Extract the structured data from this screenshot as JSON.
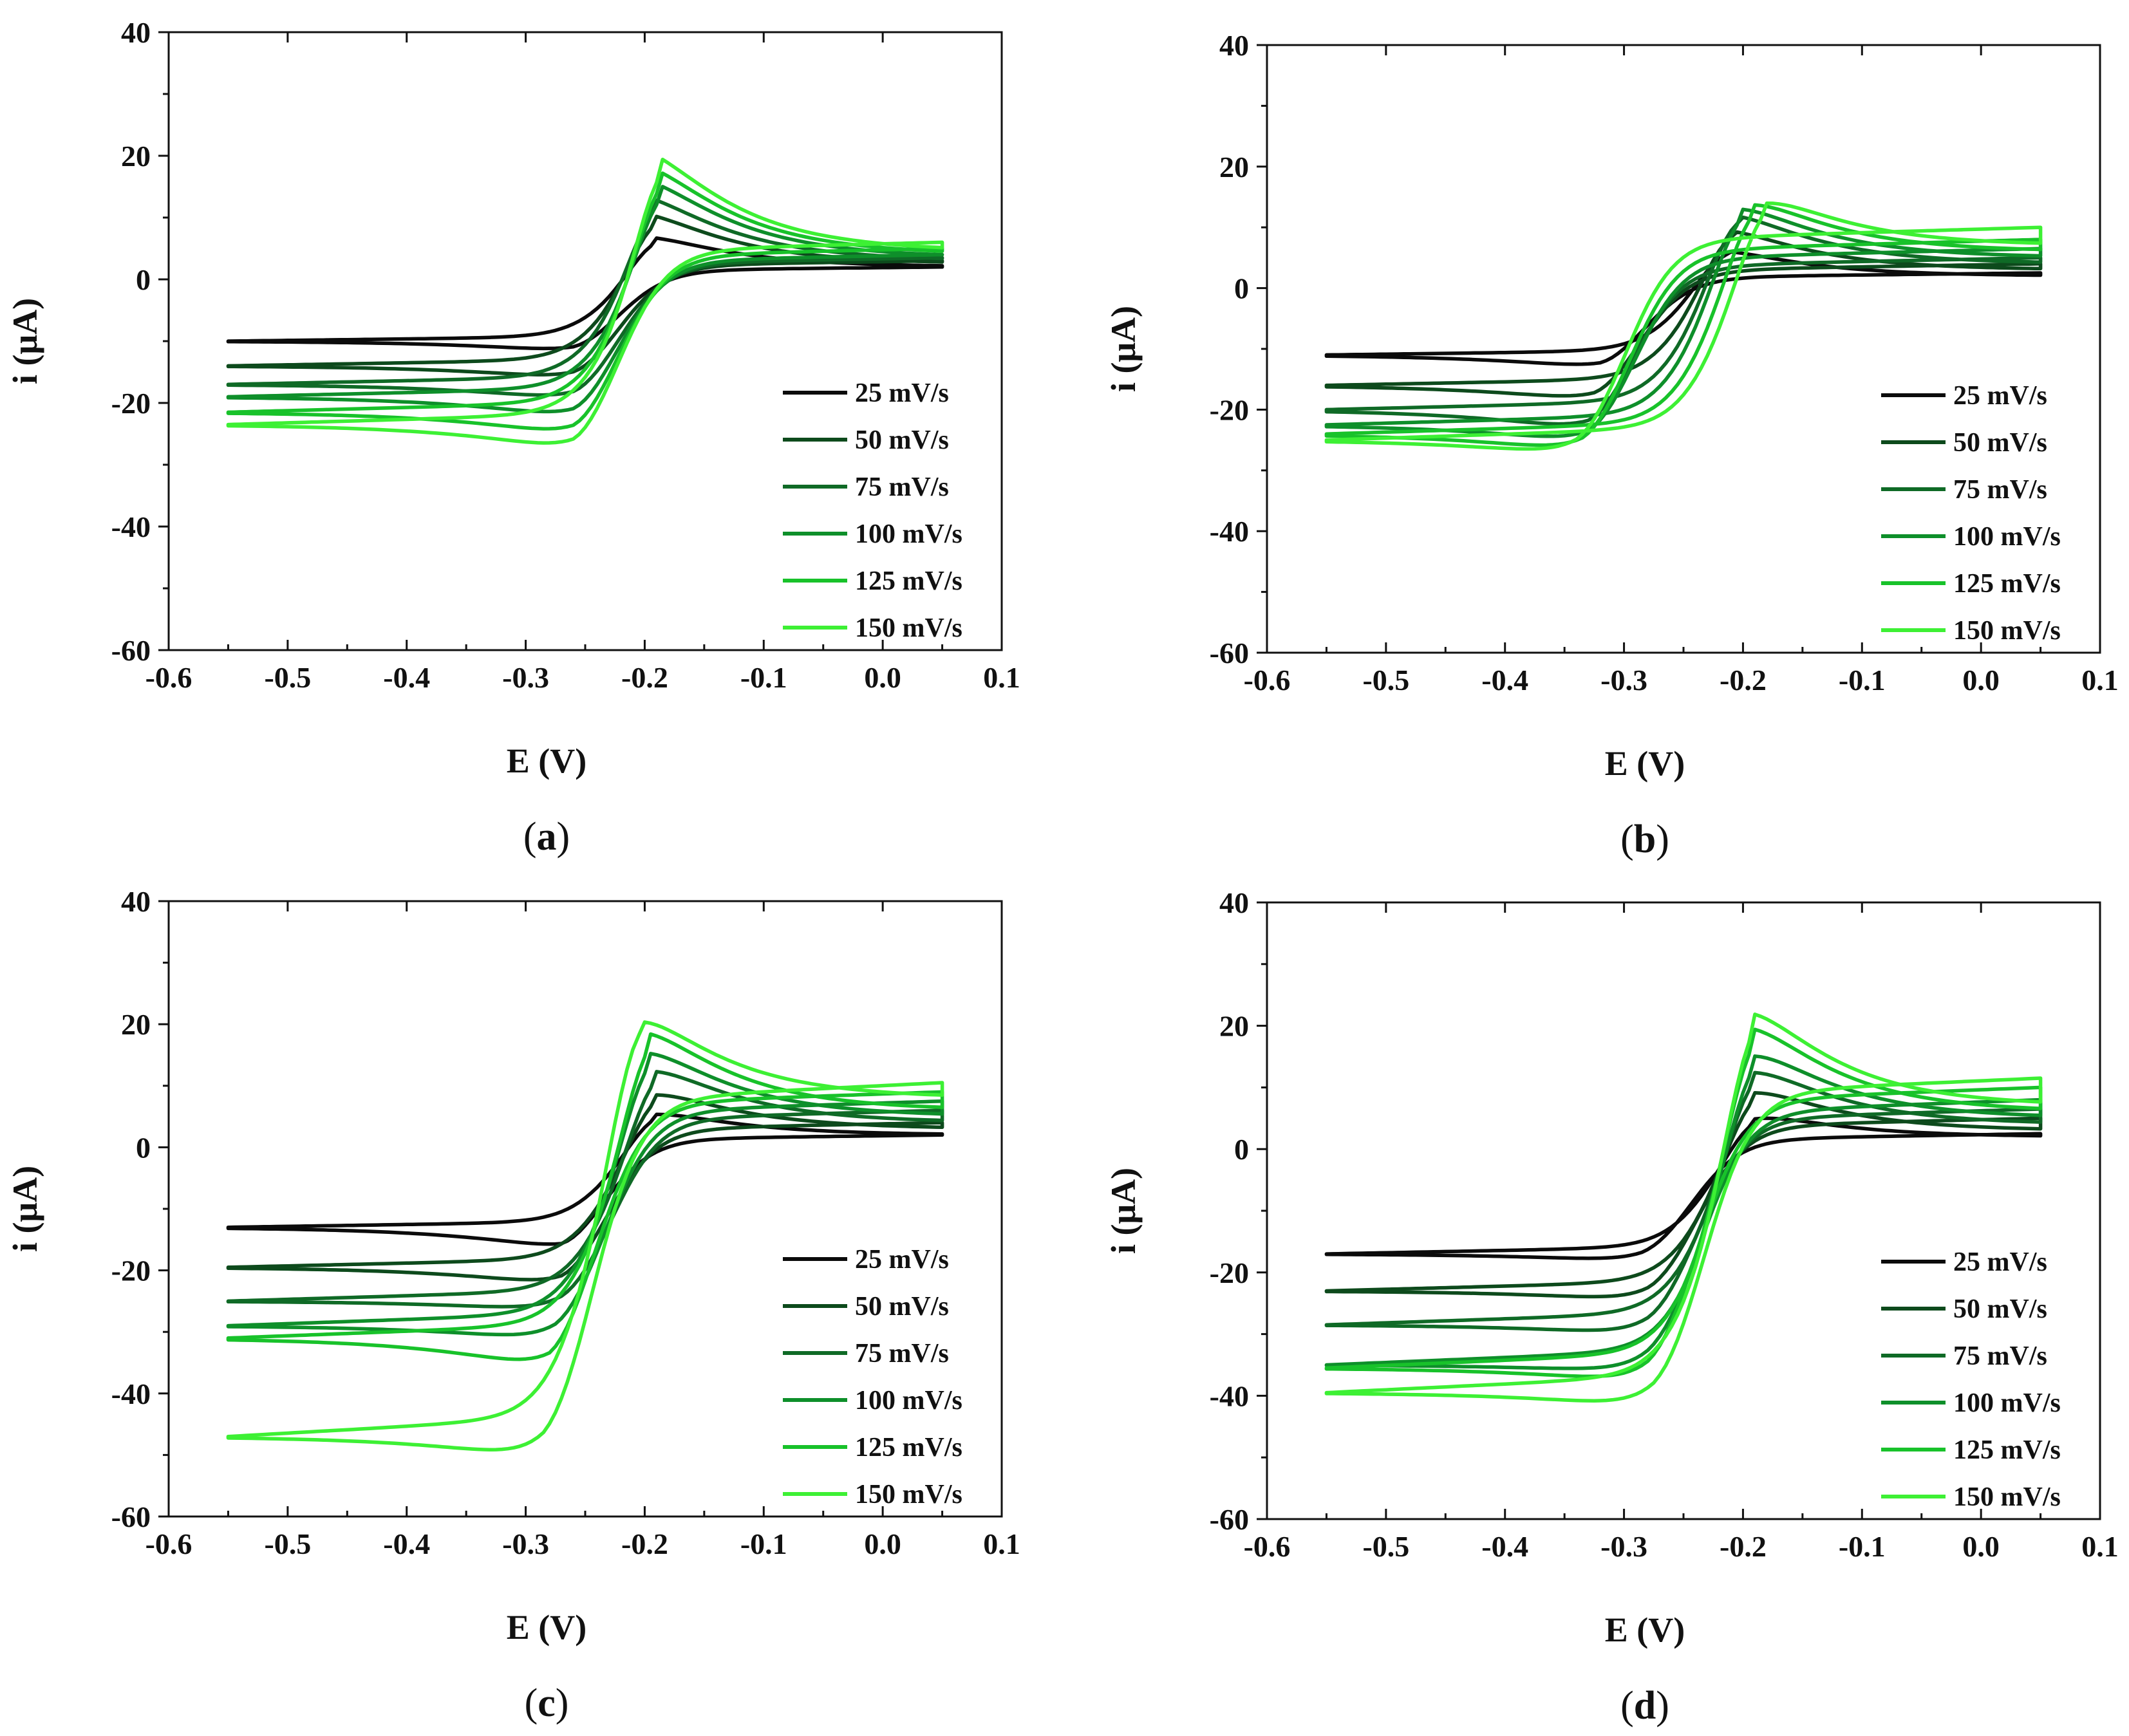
{
  "figure": {
    "colors": [
      "#0b0b0b",
      "#0d4a1c",
      "#0f6a26",
      "#0e8f2a",
      "#18c22a",
      "#3df034"
    ],
    "legend_labels": [
      "25 mV/s",
      "50 mV/s",
      "75 mV/s",
      "100 mV/s",
      "125 mV/s",
      "150 mV/s"
    ]
  },
  "chart_data": [
    {
      "type": "line",
      "panel": "(a)",
      "panel_letter": "a",
      "xlabel": "E (V)",
      "ylabel": "i (μA)",
      "xlim": [
        -0.6,
        0.1
      ],
      "ylim": [
        -60,
        40
      ],
      "xticks": [
        "-0.6",
        "-0.5",
        "-0.4",
        "-0.3",
        "-0.2",
        "-0.1",
        "0.0",
        "0.1"
      ],
      "yticks": [
        "-60",
        "-40",
        "-20",
        "0",
        "20",
        "40"
      ],
      "legend_position": "lower-right",
      "series": [
        {
          "name": "25 mV/s",
          "e_start": -0.55,
          "e_end": 0.05,
          "i_start_fwd": -10,
          "i_end_fwd": 2,
          "i_end_rev": 2,
          "i_start_rev": -10,
          "anodic_peak": {
            "x": -0.19,
            "y": 8
          },
          "cathodic_peak": {
            "x": -0.26,
            "y": -12
          }
        },
        {
          "name": "50 mV/s",
          "e_start": -0.55,
          "e_end": 0.05,
          "i_start_fwd": -14,
          "i_end_fwd": 2.5,
          "i_end_rev": 3,
          "i_start_rev": -14,
          "anodic_peak": {
            "x": -0.19,
            "y": 12
          },
          "cathodic_peak": {
            "x": -0.26,
            "y": -16.5
          }
        },
        {
          "name": "75 mV/s",
          "e_start": -0.55,
          "e_end": 0.05,
          "i_start_fwd": -17,
          "i_end_fwd": 3,
          "i_end_rev": 3.5,
          "i_start_rev": -17,
          "anodic_peak": {
            "x": -0.19,
            "y": 15
          },
          "cathodic_peak": {
            "x": -0.26,
            "y": -20
          }
        },
        {
          "name": "100 mV/s",
          "e_start": -0.55,
          "e_end": 0.05,
          "i_start_fwd": -19,
          "i_end_fwd": 3.5,
          "i_end_rev": 4,
          "i_start_rev": -19,
          "anodic_peak": {
            "x": -0.185,
            "y": 17.5
          },
          "cathodic_peak": {
            "x": -0.26,
            "y": -23
          }
        },
        {
          "name": "125 mV/s",
          "e_start": -0.55,
          "e_end": 0.05,
          "i_start_fwd": -21.5,
          "i_end_fwd": 4,
          "i_end_rev": 5,
          "i_start_rev": -21.5,
          "anodic_peak": {
            "x": -0.185,
            "y": 20
          },
          "cathodic_peak": {
            "x": -0.26,
            "y": -26
          }
        },
        {
          "name": "150 mV/s",
          "e_start": -0.55,
          "e_end": 0.05,
          "i_start_fwd": -23.5,
          "i_end_fwd": 4.5,
          "i_end_rev": 6,
          "i_start_rev": -23.5,
          "anodic_peak": {
            "x": -0.185,
            "y": 22.5
          },
          "cathodic_peak": {
            "x": -0.26,
            "y": -28.5
          }
        }
      ]
    },
    {
      "type": "line",
      "panel": "(b)",
      "panel_letter": "b",
      "xlabel": "E (V)",
      "ylabel": "i (μA)",
      "xlim": [
        -0.6,
        0.1
      ],
      "ylim": [
        -60,
        40
      ],
      "xticks": [
        "-0.6",
        "-0.5",
        "-0.4",
        "-0.3",
        "-0.2",
        "-0.1",
        "0.0",
        "0.1"
      ],
      "yticks": [
        "-60",
        "-40",
        "-20",
        "0",
        "20",
        "40"
      ],
      "legend_position": "lower-right",
      "series": [
        {
          "name": "25 mV/s",
          "e_start": -0.55,
          "e_end": 0.05,
          "i_start_fwd": -11,
          "i_end_fwd": 2,
          "i_end_rev": 2.5,
          "i_start_rev": -11,
          "anodic_peak": {
            "x": -0.215,
            "y": 7.5
          },
          "cathodic_peak": {
            "x": -0.32,
            "y": -13.5
          }
        },
        {
          "name": "50 mV/s",
          "e_start": -0.55,
          "e_end": 0.05,
          "i_start_fwd": -16,
          "i_end_fwd": 3,
          "i_end_rev": 4,
          "i_start_rev": -16,
          "anodic_peak": {
            "x": -0.21,
            "y": 11.5
          },
          "cathodic_peak": {
            "x": -0.325,
            "y": -19
          }
        },
        {
          "name": "75 mV/s",
          "e_start": -0.55,
          "e_end": 0.05,
          "i_start_fwd": -20,
          "i_end_fwd": 4,
          "i_end_rev": 5,
          "i_start_rev": -20,
          "anodic_peak": {
            "x": -0.205,
            "y": 14.5
          },
          "cathodic_peak": {
            "x": -0.33,
            "y": -24
          }
        },
        {
          "name": "100 mV/s",
          "e_start": -0.55,
          "e_end": 0.05,
          "i_start_fwd": -22.5,
          "i_end_fwd": 5,
          "i_end_rev": 6.5,
          "i_start_rev": -22.5,
          "anodic_peak": {
            "x": -0.2,
            "y": 16
          },
          "cathodic_peak": {
            "x": -0.33,
            "y": -26
          }
        },
        {
          "name": "125 mV/s",
          "e_start": -0.55,
          "e_end": 0.05,
          "i_start_fwd": -24,
          "i_end_fwd": 6,
          "i_end_rev": 8,
          "i_start_rev": -24,
          "anodic_peak": {
            "x": -0.19,
            "y": 17
          },
          "cathodic_peak": {
            "x": -0.335,
            "y": -27.5
          }
        },
        {
          "name": "150 mV/s",
          "e_start": -0.55,
          "e_end": 0.05,
          "i_start_fwd": -25,
          "i_end_fwd": 7,
          "i_end_rev": 10,
          "i_start_rev": -25,
          "anodic_peak": {
            "x": -0.18,
            "y": 17.5
          },
          "cathodic_peak": {
            "x": -0.34,
            "y": -28
          }
        }
      ]
    },
    {
      "type": "line",
      "panel": "(c)",
      "panel_letter": "c",
      "xlabel": "E (V)",
      "ylabel": "i (μA)",
      "xlim": [
        -0.6,
        0.1
      ],
      "ylim": [
        -60,
        40
      ],
      "xticks": [
        "-0.6",
        "-0.5",
        "-0.4",
        "-0.3",
        "-0.2",
        "-0.1",
        "0.0",
        "0.1"
      ],
      "yticks": [
        "-60",
        "-40",
        "-20",
        "0",
        "20",
        "40"
      ],
      "legend_position": "lower-right",
      "series": [
        {
          "name": "25 mV/s",
          "e_start": -0.55,
          "e_end": 0.05,
          "i_start_fwd": -13,
          "i_end_fwd": 2,
          "i_end_rev": 2,
          "i_start_rev": -13,
          "anodic_peak": {
            "x": -0.19,
            "y": 7
          },
          "cathodic_peak": {
            "x": -0.27,
            "y": -17
          }
        },
        {
          "name": "50 mV/s",
          "e_start": -0.55,
          "e_end": 0.05,
          "i_start_fwd": -19.5,
          "i_end_fwd": 3,
          "i_end_rev": 4,
          "i_start_rev": -19.5,
          "anodic_peak": {
            "x": -0.19,
            "y": 11
          },
          "cathodic_peak": {
            "x": -0.27,
            "y": -23
          }
        },
        {
          "name": "75 mV/s",
          "e_start": -0.55,
          "e_end": 0.05,
          "i_start_fwd": -25,
          "i_end_fwd": 4,
          "i_end_rev": 6,
          "i_start_rev": -25,
          "anodic_peak": {
            "x": -0.19,
            "y": 15.5
          },
          "cathodic_peak": {
            "x": -0.27,
            "y": -27
          }
        },
        {
          "name": "100 mV/s",
          "e_start": -0.55,
          "e_end": 0.05,
          "i_start_fwd": -29,
          "i_end_fwd": 5,
          "i_end_rev": 7.5,
          "i_start_rev": -29,
          "anodic_peak": {
            "x": -0.195,
            "y": 19
          },
          "cathodic_peak": {
            "x": -0.275,
            "y": -32
          }
        },
        {
          "name": "125 mV/s",
          "e_start": -0.55,
          "e_end": 0.05,
          "i_start_fwd": -31,
          "i_end_fwd": 6,
          "i_end_rev": 9,
          "i_start_rev": -31,
          "anodic_peak": {
            "x": -0.195,
            "y": 22.5
          },
          "cathodic_peak": {
            "x": -0.28,
            "y": -37
          }
        },
        {
          "name": "150 mV/s",
          "e_start": -0.55,
          "e_end": 0.05,
          "i_start_fwd": -47,
          "i_end_fwd": 8,
          "i_end_rev": 10.5,
          "i_start_rev": -47,
          "anodic_peak": {
            "x": -0.205,
            "y": 26.5
          },
          "cathodic_peak": {
            "x": -0.285,
            "y": -51.5
          }
        }
      ]
    },
    {
      "type": "line",
      "panel": "(d)",
      "panel_letter": "d",
      "xlabel": "E (V)",
      "ylabel": "i (μA)",
      "xlim": [
        -0.6,
        0.1
      ],
      "ylim": [
        -60,
        40
      ],
      "xticks": [
        "-0.6",
        "-0.5",
        "-0.4",
        "-0.3",
        "-0.2",
        "-0.1",
        "0.0",
        "0.1"
      ],
      "yticks": [
        "-60",
        "-40",
        "-20",
        "0",
        "20",
        "40"
      ],
      "legend_position": "lower-right",
      "series": [
        {
          "name": "25 mV/s",
          "e_start": -0.55,
          "e_end": 0.05,
          "i_start_fwd": -17,
          "i_end_fwd": 2,
          "i_end_rev": 2.5,
          "i_start_rev": -17,
          "anodic_peak": {
            "x": -0.19,
            "y": 7
          },
          "cathodic_peak": {
            "x": -0.285,
            "y": -18.5
          }
        },
        {
          "name": "50 mV/s",
          "e_start": -0.55,
          "e_end": 0.05,
          "i_start_fwd": -23,
          "i_end_fwd": 3,
          "i_end_rev": 5,
          "i_start_rev": -23,
          "anodic_peak": {
            "x": -0.19,
            "y": 12
          },
          "cathodic_peak": {
            "x": -0.28,
            "y": -25
          }
        },
        {
          "name": "75 mV/s",
          "e_start": -0.55,
          "e_end": 0.05,
          "i_start_fwd": -28.5,
          "i_end_fwd": 4,
          "i_end_rev": 6.5,
          "i_start_rev": -28.5,
          "anodic_peak": {
            "x": -0.19,
            "y": 16
          },
          "cathodic_peak": {
            "x": -0.28,
            "y": -30.5
          }
        },
        {
          "name": "100 mV/s",
          "e_start": -0.55,
          "e_end": 0.05,
          "i_start_fwd": -35,
          "i_end_fwd": 5,
          "i_end_rev": 8,
          "i_start_rev": -35,
          "anodic_peak": {
            "x": -0.19,
            "y": 19.5
          },
          "cathodic_peak": {
            "x": -0.28,
            "y": -36.5
          }
        },
        {
          "name": "125 mV/s",
          "e_start": -0.55,
          "e_end": 0.05,
          "i_start_fwd": -35.5,
          "i_end_fwd": 6,
          "i_end_rev": 10,
          "i_start_rev": -35.5,
          "anodic_peak": {
            "x": -0.19,
            "y": 24
          },
          "cathodic_peak": {
            "x": -0.28,
            "y": -38.5
          }
        },
        {
          "name": "150 mV/s",
          "e_start": -0.55,
          "e_end": 0.05,
          "i_start_fwd": -39.5,
          "i_end_fwd": 7,
          "i_end_rev": 11.5,
          "i_start_rev": -39.5,
          "anodic_peak": {
            "x": -0.19,
            "y": 27
          },
          "cathodic_peak": {
            "x": -0.275,
            "y": -42.5
          }
        }
      ]
    }
  ]
}
